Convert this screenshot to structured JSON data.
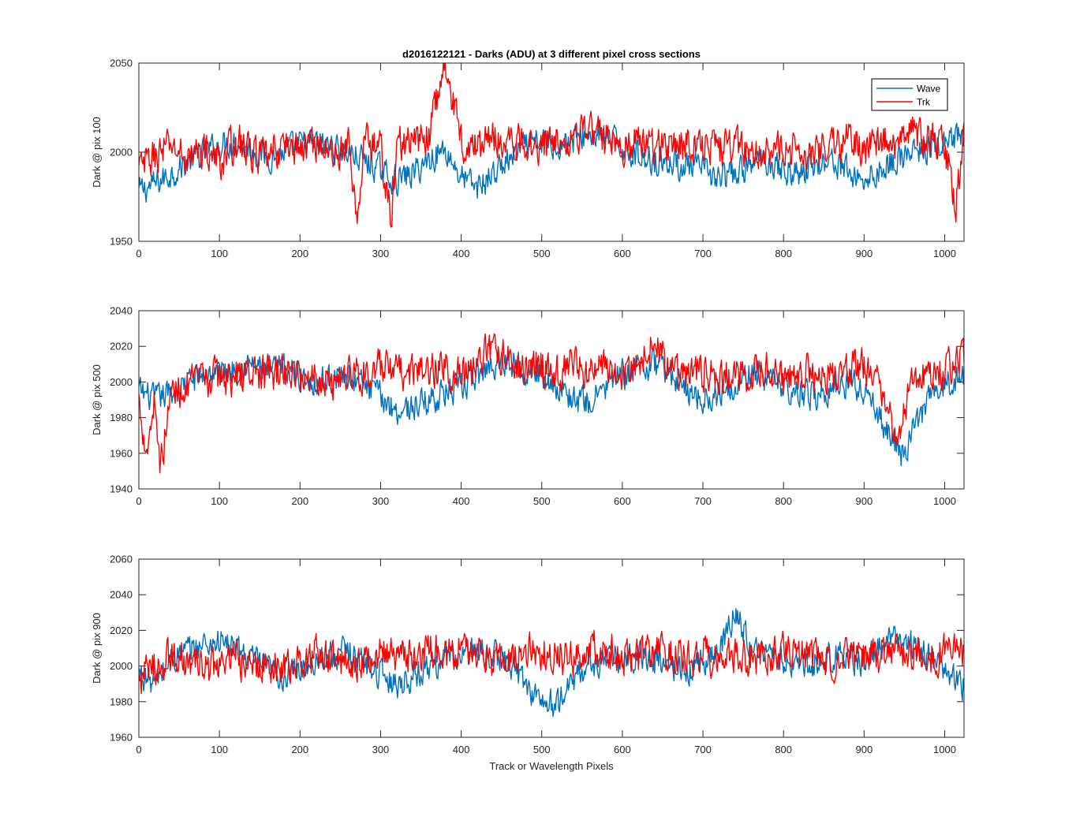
{
  "figure": {
    "title": "d2016122121 - Darks (ADU) at 3 different pixel cross sections",
    "xlabel": "Track or Wavelength Pixels"
  },
  "legend": {
    "placement": "top-right",
    "entries": [
      {
        "name": "Wave",
        "color": "#0072BD"
      },
      {
        "name": "Trk",
        "color": "#FF0000"
      }
    ]
  },
  "chart_data": [
    {
      "type": "line",
      "ylabel": "Dark @ pix 100",
      "xlim": [
        0,
        1024
      ],
      "ylim": [
        1950,
        2050
      ],
      "xticks": [
        0,
        100,
        200,
        300,
        400,
        500,
        600,
        700,
        800,
        900,
        1000
      ],
      "yticks": [
        1950,
        2000,
        2050
      ],
      "grid": false,
      "series": [
        {
          "name": "Wave",
          "color": "#0072BD",
          "x": [
            0,
            20,
            40,
            60,
            80,
            100,
            120,
            140,
            160,
            180,
            200,
            220,
            240,
            260,
            280,
            300,
            320,
            340,
            360,
            380,
            400,
            420,
            440,
            460,
            480,
            500,
            520,
            540,
            560,
            580,
            600,
            620,
            640,
            660,
            680,
            700,
            720,
            740,
            760,
            780,
            800,
            820,
            840,
            860,
            880,
            900,
            920,
            940,
            960,
            980,
            1000,
            1024
          ],
          "y": [
            1978,
            1982,
            1988,
            1994,
            1999,
            2004,
            2006,
            2001,
            1997,
            2000,
            2004,
            2005,
            2003,
            2000,
            1995,
            1990,
            1984,
            1988,
            1996,
            2002,
            1986,
            1980,
            1988,
            1996,
            2003,
            2006,
            2004,
            2007,
            2010,
            2008,
            2003,
            1998,
            1996,
            1994,
            1992,
            1990,
            1985,
            1987,
            1993,
            1996,
            1990,
            1988,
            1993,
            1996,
            1989,
            1984,
            1990,
            1996,
            1999,
            2002,
            2004,
            2008
          ]
        },
        {
          "name": "Trk",
          "color": "#FF0000",
          "x": [
            0,
            20,
            40,
            60,
            80,
            100,
            120,
            140,
            160,
            180,
            200,
            220,
            240,
            260,
            270,
            280,
            300,
            314,
            320,
            340,
            360,
            380,
            400,
            420,
            440,
            460,
            480,
            500,
            520,
            540,
            560,
            580,
            600,
            620,
            640,
            660,
            680,
            700,
            720,
            740,
            760,
            780,
            800,
            820,
            840,
            860,
            880,
            900,
            920,
            940,
            960,
            980,
            1000,
            1014,
            1024
          ],
          "y": [
            1990,
            1998,
            2004,
            1996,
            2002,
            1994,
            2006,
            2000,
            1996,
            2004,
            2002,
            2006,
            1998,
            2004,
            1960,
            2008,
            2002,
            1960,
            2006,
            2004,
            2010,
            2050,
            2006,
            2002,
            2010,
            2004,
            2006,
            2004,
            2008,
            2010,
            2012,
            2008,
            2004,
            2006,
            2002,
            2006,
            2004,
            2006,
            2002,
            2004,
            2000,
            2004,
            1998,
            2002,
            2000,
            2004,
            2006,
            2002,
            2008,
            2004,
            2010,
            2008,
            2004,
            1972,
            2006
          ]
        }
      ]
    },
    {
      "type": "line",
      "ylabel": "Dark @ pix 500",
      "xlim": [
        0,
        1024
      ],
      "ylim": [
        1940,
        2040
      ],
      "xticks": [
        0,
        100,
        200,
        300,
        400,
        500,
        600,
        700,
        800,
        900,
        1000
      ],
      "yticks": [
        1940,
        1960,
        1980,
        2000,
        2020,
        2040
      ],
      "grid": false,
      "series": [
        {
          "name": "Wave",
          "color": "#0072BD",
          "x": [
            0,
            20,
            40,
            60,
            80,
            100,
            120,
            140,
            160,
            180,
            200,
            220,
            240,
            260,
            280,
            300,
            320,
            340,
            360,
            380,
            400,
            420,
            440,
            460,
            480,
            500,
            520,
            540,
            560,
            580,
            600,
            620,
            640,
            660,
            680,
            700,
            720,
            740,
            760,
            780,
            800,
            820,
            840,
            860,
            880,
            900,
            920,
            940,
            950,
            960,
            980,
            1000,
            1024
          ],
          "y": [
            1995,
            1990,
            1994,
            2000,
            2004,
            2006,
            2008,
            2010,
            2006,
            2008,
            2004,
            2000,
            2002,
            2004,
            1998,
            1992,
            1984,
            1986,
            1990,
            1994,
            1996,
            2004,
            2010,
            2012,
            2008,
            2004,
            1998,
            1990,
            1988,
            1998,
            2004,
            2008,
            2010,
            2004,
            1996,
            1990,
            1994,
            2000,
            2004,
            2002,
            1998,
            1994,
            1992,
            1996,
            2000,
            1996,
            1978,
            1965,
            1958,
            1972,
            1990,
            1998,
            2004
          ]
        },
        {
          "name": "Trk",
          "color": "#FF0000",
          "x": [
            0,
            10,
            20,
            27,
            40,
            60,
            80,
            100,
            120,
            140,
            160,
            180,
            200,
            220,
            240,
            260,
            280,
            300,
            320,
            340,
            360,
            380,
            400,
            420,
            440,
            460,
            480,
            500,
            520,
            540,
            560,
            580,
            600,
            620,
            634,
            660,
            680,
            700,
            720,
            740,
            760,
            780,
            800,
            820,
            840,
            860,
            880,
            900,
            920,
            940,
            960,
            980,
            1000,
            1024
          ],
          "y": [
            1990,
            1962,
            1992,
            1952,
            1994,
            1998,
            2000,
            2004,
            2002,
            2006,
            2004,
            2006,
            2002,
            2004,
            2000,
            2006,
            2004,
            2008,
            2004,
            2006,
            2006,
            2008,
            2004,
            2010,
            2018,
            2012,
            2008,
            2010,
            2006,
            2008,
            2004,
            2008,
            2006,
            2010,
            2022,
            2008,
            2004,
            2006,
            2002,
            2004,
            2002,
            2006,
            2002,
            2004,
            2006,
            2004,
            2006,
            2008,
            2002,
            1966,
            2004,
            2006,
            2008,
            2012
          ]
        }
      ]
    },
    {
      "type": "line",
      "ylabel": "Dark @ pix 900",
      "xlim": [
        0,
        1024
      ],
      "ylim": [
        1960,
        2060
      ],
      "xticks": [
        0,
        100,
        200,
        300,
        400,
        500,
        600,
        700,
        800,
        900,
        1000
      ],
      "yticks": [
        1960,
        1980,
        2000,
        2020,
        2040,
        2060
      ],
      "grid": false,
      "series": [
        {
          "name": "Wave",
          "color": "#0072BD",
          "x": [
            0,
            20,
            40,
            60,
            80,
            100,
            120,
            140,
            160,
            180,
            200,
            220,
            240,
            260,
            280,
            300,
            320,
            340,
            360,
            380,
            400,
            420,
            440,
            460,
            480,
            500,
            520,
            540,
            560,
            580,
            600,
            620,
            640,
            660,
            680,
            700,
            720,
            740,
            760,
            780,
            800,
            820,
            840,
            860,
            880,
            900,
            920,
            940,
            960,
            980,
            1000,
            1024
          ],
          "y": [
            1996,
            1990,
            2004,
            2008,
            2012,
            2014,
            2010,
            2004,
            1998,
            1994,
            1998,
            2004,
            2006,
            2008,
            2002,
            1996,
            1990,
            1994,
            2000,
            2004,
            2006,
            2008,
            2006,
            2002,
            1990,
            1980,
            1978,
            1994,
            2000,
            2004,
            2002,
            2006,
            2004,
            2000,
            1996,
            2004,
            2008,
            2030,
            2012,
            2006,
            2004,
            2000,
            2002,
            2006,
            2004,
            2002,
            2010,
            2016,
            2012,
            2006,
            1998,
            1988
          ]
        },
        {
          "name": "Trk",
          "color": "#FF0000",
          "x": [
            0,
            20,
            40,
            60,
            80,
            100,
            120,
            140,
            160,
            180,
            200,
            220,
            240,
            260,
            280,
            300,
            320,
            340,
            360,
            380,
            400,
            420,
            440,
            460,
            480,
            500,
            520,
            540,
            560,
            580,
            600,
            620,
            640,
            660,
            680,
            700,
            720,
            740,
            760,
            780,
            800,
            820,
            840,
            860,
            880,
            900,
            920,
            940,
            960,
            980,
            1000,
            1024
          ],
          "y": [
            1992,
            2000,
            2006,
            2002,
            1998,
            2000,
            2004,
            1998,
            2002,
            2000,
            2002,
            2006,
            2004,
            2002,
            2004,
            2008,
            2004,
            2006,
            2008,
            2006,
            2010,
            2008,
            2004,
            2006,
            2010,
            2008,
            2006,
            2004,
            2010,
            2008,
            2006,
            2004,
            2008,
            2006,
            2004,
            2008,
            2002,
            2006,
            2004,
            2006,
            2008,
            2006,
            2004,
            2002,
            2006,
            2004,
            2006,
            2008,
            2006,
            2004,
            2008,
            2006
          ]
        }
      ]
    }
  ]
}
